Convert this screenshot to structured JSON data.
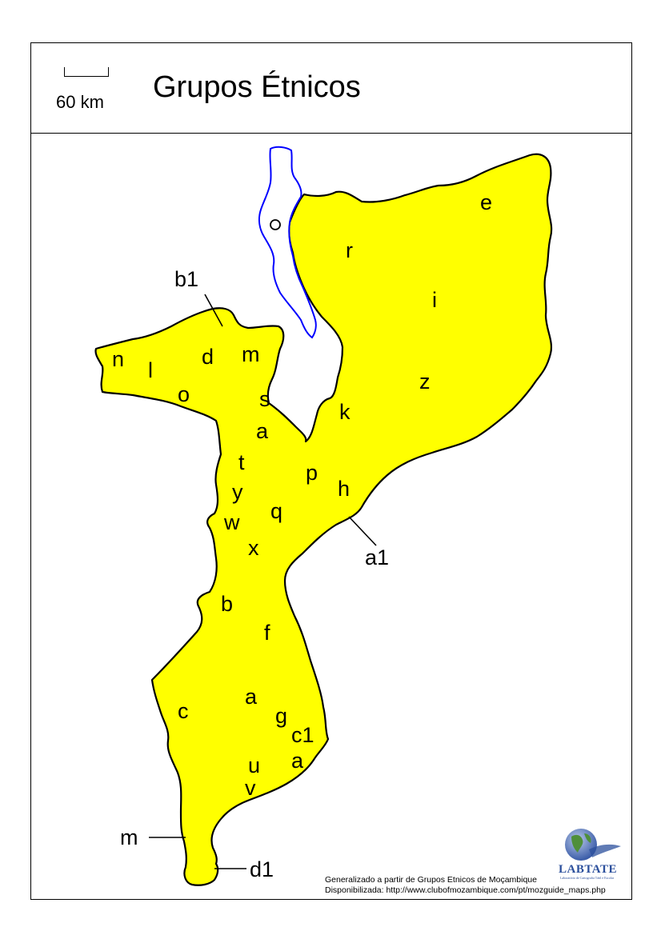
{
  "header": {
    "title": "Grupos Étnicos",
    "scale_label": "60 km"
  },
  "map": {
    "fill_color": "#ffff00",
    "outline_color": "#000000",
    "lake_color": "#0000ff",
    "labels": {
      "e": "e",
      "r": "r",
      "i": "i",
      "z": "z",
      "k": "k",
      "b1": "b1",
      "n": "n",
      "l": "l",
      "d": "d",
      "m": "m",
      "o": "o",
      "s": "s",
      "a_north": "a",
      "t": "t",
      "p": "p",
      "h": "h",
      "y": "y",
      "q": "q",
      "w": "w",
      "x": "x",
      "a1": "a1",
      "b": "b",
      "f": "f",
      "c": "c",
      "a_south": "a",
      "g": "g",
      "c1": "c1",
      "a_coast": "a",
      "u": "u",
      "v": "v",
      "m_south": "m",
      "d1": "d1"
    }
  },
  "footer": {
    "credit_line_1": "Generalizado a partir de Grupos Etnicos de Moçambique",
    "credit_line_2": "Disponibilizada: http://www.clubofmozambique.com/pt/mozguide_maps.php",
    "logo_name": "LABTATE",
    "logo_subtitle": "Laboratório de Cartografia Tátil e Escolar"
  }
}
